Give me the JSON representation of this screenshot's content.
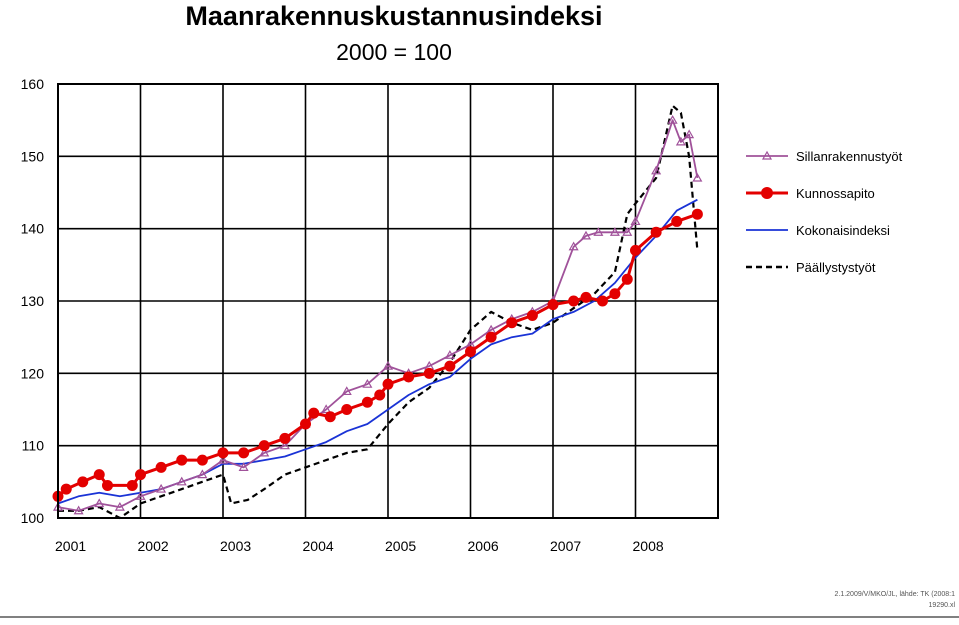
{
  "chart_data": {
    "type": "line",
    "title": "Maanrakennuskustannusindeksi",
    "subtitle": "2000 = 100",
    "ylim": [
      100,
      160
    ],
    "xlim": [
      2001,
      2009
    ],
    "grid": true,
    "legend_position": "right",
    "y_ticks": [
      "100",
      "110",
      "120",
      "130",
      "140",
      "150",
      "160"
    ],
    "x_ticks": [
      "2001",
      "2002",
      "2003",
      "2004",
      "2005",
      "2006",
      "2007",
      "2008"
    ],
    "series": [
      {
        "name": "Sillanrakennustyöt",
        "color": "#a0529a",
        "style": "line-triangle",
        "points": [
          [
            2001.0,
            101.5
          ],
          [
            2001.25,
            101.0
          ],
          [
            2001.5,
            102.0
          ],
          [
            2001.75,
            101.5
          ],
          [
            2002.0,
            103.0
          ],
          [
            2002.25,
            104.0
          ],
          [
            2002.5,
            105.0
          ],
          [
            2002.75,
            106.0
          ],
          [
            2003.0,
            108.0
          ],
          [
            2003.25,
            107.0
          ],
          [
            2003.5,
            109.0
          ],
          [
            2003.75,
            110.0
          ],
          [
            2004.0,
            113.0
          ],
          [
            2004.25,
            115.0
          ],
          [
            2004.5,
            117.5
          ],
          [
            2004.75,
            118.5
          ],
          [
            2005.0,
            121.0
          ],
          [
            2005.25,
            120.0
          ],
          [
            2005.5,
            121.0
          ],
          [
            2005.75,
            122.5
          ],
          [
            2006.0,
            124.0
          ],
          [
            2006.25,
            126.0
          ],
          [
            2006.5,
            127.5
          ],
          [
            2006.75,
            128.5
          ],
          [
            2007.0,
            130.0
          ],
          [
            2007.25,
            137.5
          ],
          [
            2007.4,
            139.0
          ],
          [
            2007.55,
            139.5
          ],
          [
            2007.75,
            139.5
          ],
          [
            2007.9,
            139.5
          ],
          [
            2008.0,
            141.0
          ],
          [
            2008.25,
            148.0
          ],
          [
            2008.45,
            155.0
          ],
          [
            2008.55,
            152.0
          ],
          [
            2008.65,
            153.0
          ],
          [
            2008.75,
            147.0
          ]
        ]
      },
      {
        "name": "Kunnossapito",
        "color": "#e30000",
        "style": "line-circle",
        "points": [
          [
            2001.0,
            103.0
          ],
          [
            2001.1,
            104.0
          ],
          [
            2001.3,
            105.0
          ],
          [
            2001.5,
            106.0
          ],
          [
            2001.6,
            104.5
          ],
          [
            2001.9,
            104.5
          ],
          [
            2002.0,
            106.0
          ],
          [
            2002.25,
            107.0
          ],
          [
            2002.5,
            108.0
          ],
          [
            2002.75,
            108.0
          ],
          [
            2003.0,
            109.0
          ],
          [
            2003.25,
            109.0
          ],
          [
            2003.5,
            110.0
          ],
          [
            2003.75,
            111.0
          ],
          [
            2004.0,
            113.0
          ],
          [
            2004.1,
            114.5
          ],
          [
            2004.3,
            114.0
          ],
          [
            2004.5,
            115.0
          ],
          [
            2004.75,
            116.0
          ],
          [
            2004.9,
            117.0
          ],
          [
            2005.0,
            118.5
          ],
          [
            2005.25,
            119.5
          ],
          [
            2005.5,
            120.0
          ],
          [
            2005.75,
            121.0
          ],
          [
            2006.0,
            123.0
          ],
          [
            2006.25,
            125.0
          ],
          [
            2006.5,
            127.0
          ],
          [
            2006.75,
            128.0
          ],
          [
            2007.0,
            129.5
          ],
          [
            2007.25,
            130.0
          ],
          [
            2007.4,
            130.5
          ],
          [
            2007.6,
            130.0
          ],
          [
            2007.75,
            131.0
          ],
          [
            2007.9,
            133.0
          ],
          [
            2008.0,
            137.0
          ],
          [
            2008.25,
            139.5
          ],
          [
            2008.5,
            141.0
          ],
          [
            2008.75,
            142.0
          ]
        ]
      },
      {
        "name": "Kokonaisindeksi",
        "color": "#1a33d6",
        "style": "line",
        "points": [
          [
            2001.0,
            102.0
          ],
          [
            2001.25,
            103.0
          ],
          [
            2001.5,
            103.5
          ],
          [
            2001.75,
            103.0
          ],
          [
            2002.0,
            103.5
          ],
          [
            2002.25,
            104.0
          ],
          [
            2002.5,
            105.0
          ],
          [
            2002.75,
            106.0
          ],
          [
            2003.0,
            107.5
          ],
          [
            2003.25,
            107.5
          ],
          [
            2003.5,
            108.0
          ],
          [
            2003.75,
            108.5
          ],
          [
            2004.0,
            109.5
          ],
          [
            2004.25,
            110.5
          ],
          [
            2004.5,
            112.0
          ],
          [
            2004.75,
            113.0
          ],
          [
            2005.0,
            115.0
          ],
          [
            2005.25,
            117.0
          ],
          [
            2005.5,
            118.5
          ],
          [
            2005.75,
            119.5
          ],
          [
            2006.0,
            122.0
          ],
          [
            2006.25,
            124.0
          ],
          [
            2006.5,
            125.0
          ],
          [
            2006.75,
            125.5
          ],
          [
            2007.0,
            127.5
          ],
          [
            2007.25,
            128.5
          ],
          [
            2007.5,
            130.0
          ],
          [
            2007.75,
            132.5
          ],
          [
            2008.0,
            136.0
          ],
          [
            2008.25,
            139.0
          ],
          [
            2008.5,
            142.5
          ],
          [
            2008.75,
            144.0
          ]
        ]
      },
      {
        "name": "Päällystystyöt",
        "color": "#000000",
        "style": "dashed",
        "points": [
          [
            2001.0,
            101.0
          ],
          [
            2001.25,
            101.0
          ],
          [
            2001.5,
            101.5
          ],
          [
            2001.75,
            100.0
          ],
          [
            2002.0,
            102.0
          ],
          [
            2002.25,
            103.0
          ],
          [
            2002.5,
            104.0
          ],
          [
            2002.75,
            105.0
          ],
          [
            2003.0,
            106.0
          ],
          [
            2003.1,
            102.0
          ],
          [
            2003.3,
            102.5
          ],
          [
            2003.5,
            104.0
          ],
          [
            2003.75,
            106.0
          ],
          [
            2004.0,
            107.0
          ],
          [
            2004.25,
            108.0
          ],
          [
            2004.5,
            109.0
          ],
          [
            2004.75,
            109.5
          ],
          [
            2005.0,
            113.0
          ],
          [
            2005.25,
            116.0
          ],
          [
            2005.5,
            118.0
          ],
          [
            2005.75,
            121.5
          ],
          [
            2006.0,
            126.0
          ],
          [
            2006.25,
            128.5
          ],
          [
            2006.5,
            127.0
          ],
          [
            2006.75,
            126.0
          ],
          [
            2007.0,
            127.0
          ],
          [
            2007.25,
            129.0
          ],
          [
            2007.5,
            131.0
          ],
          [
            2007.75,
            134.0
          ],
          [
            2007.9,
            142.0
          ],
          [
            2008.0,
            143.5
          ],
          [
            2008.25,
            147.0
          ],
          [
            2008.45,
            157.0
          ],
          [
            2008.55,
            156.0
          ],
          [
            2008.65,
            150.0
          ],
          [
            2008.75,
            137.0
          ]
        ]
      }
    ]
  },
  "footnote": {
    "line1": "2.1.2009/V/MKO/JL, lähde: TK (2008:1",
    "line2": "19290.xl"
  }
}
